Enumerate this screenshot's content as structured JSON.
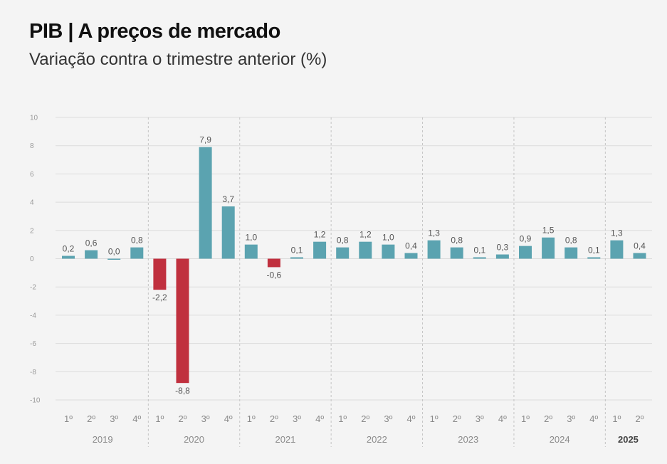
{
  "header": {
    "title": "PIB | A preços de mercado",
    "subtitle": "Variação contra o trimestre anterior (%)"
  },
  "colors": {
    "positive": "#5ba3b0",
    "negative": "#c0303e",
    "grid": "#dcdcdc",
    "separator": "#c4c4c4"
  },
  "chart_data": {
    "type": "bar",
    "title": "PIB | A preços de mercado",
    "subtitle": "Variação contra o trimestre anterior (%)",
    "ylim": [
      -10,
      10
    ],
    "yticks": [
      10,
      8,
      6,
      4,
      2,
      0,
      -2,
      -4,
      -6,
      -8,
      -10
    ],
    "grid": true,
    "years": [
      {
        "label": "2019",
        "quarters": 4,
        "bold": false
      },
      {
        "label": "2020",
        "quarters": 4,
        "bold": false
      },
      {
        "label": "2021",
        "quarters": 4,
        "bold": false
      },
      {
        "label": "2022",
        "quarters": 4,
        "bold": false
      },
      {
        "label": "2023",
        "quarters": 4,
        "bold": false
      },
      {
        "label": "2024",
        "quarters": 4,
        "bold": false
      },
      {
        "label": "2025",
        "quarters": 2,
        "bold": true
      }
    ],
    "categories": [
      "1º",
      "2º",
      "3º",
      "4º",
      "1º",
      "2º",
      "3º",
      "4º",
      "1º",
      "2º",
      "3º",
      "4º",
      "1º",
      "2º",
      "3º",
      "4º",
      "1º",
      "2º",
      "3º",
      "4º",
      "1º",
      "2º",
      "3º",
      "4º",
      "1º",
      "2º"
    ],
    "values": [
      0.2,
      0.6,
      0.0,
      0.8,
      -2.2,
      -8.8,
      7.9,
      3.7,
      1.0,
      -0.6,
      0.1,
      1.2,
      0.8,
      1.2,
      1.0,
      0.4,
      1.3,
      0.8,
      0.1,
      0.3,
      0.9,
      1.5,
      0.8,
      0.1,
      1.3,
      0.4
    ],
    "value_labels": [
      "0,2",
      "0,6",
      "0,0",
      "0,8",
      "-2,2",
      "-8,8",
      "7,9",
      "3,7",
      "1,0",
      "-0,6",
      "0,1",
      "1,2",
      "0,8",
      "1,2",
      "1,0",
      "0,4",
      "1,3",
      "0,8",
      "0,1",
      "0,3",
      "0,9",
      "1,5",
      "0,8",
      "0,1",
      "1,3",
      "0,4"
    ]
  }
}
